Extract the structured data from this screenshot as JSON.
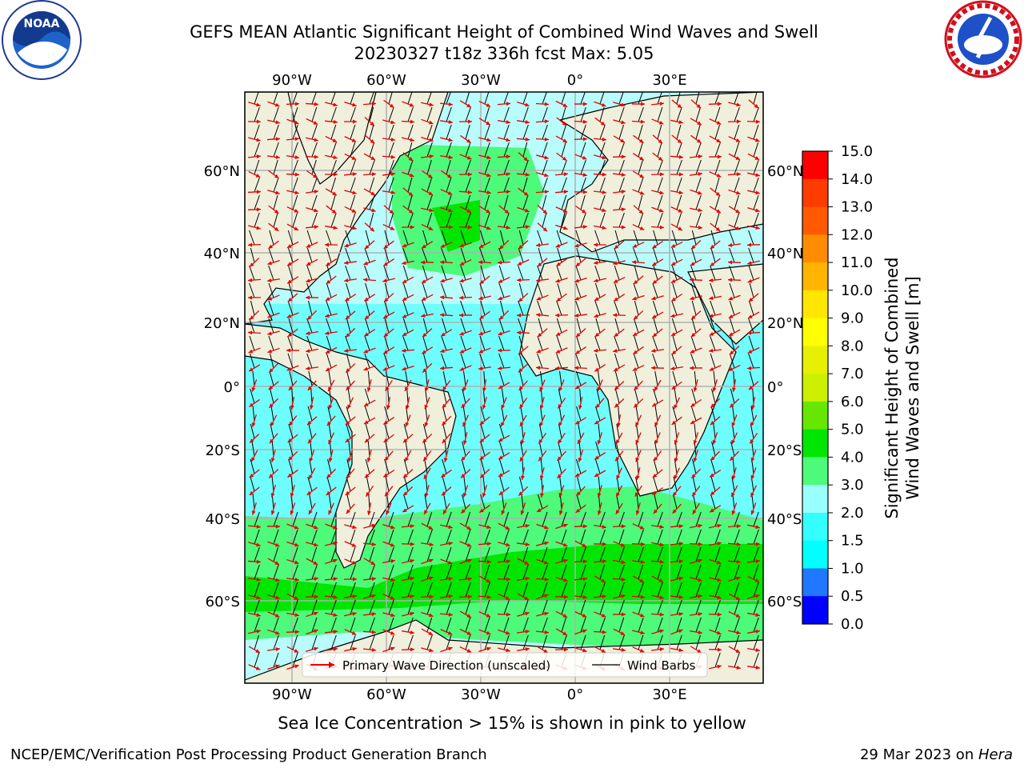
{
  "header": {
    "title_line1": "GEFS MEAN Atlantic Significant Height of Combined Wind Waves and Swell",
    "title_line2": "20230327 t18z 336h fcst   Max: 5.05"
  },
  "logos": {
    "left": "NOAA",
    "right": "National Weather Service"
  },
  "map": {
    "top_lon_labels": [
      "90°W",
      "60°W",
      "30°W",
      "0°",
      "30°E"
    ],
    "bottom_lon_labels": [
      "90°W",
      "60°W",
      "30°W",
      "0°",
      "30°E"
    ],
    "left_lat_labels": [
      "60°N",
      "40°N",
      "20°N",
      "0°",
      "20°S",
      "40°S",
      "60°S"
    ],
    "right_lat_labels": [
      "60°N",
      "40°N",
      "20°N",
      "0°",
      "20°S",
      "40°S",
      "60°S"
    ],
    "legend": {
      "wave_direction": "Primary Wave Direction (unscaled)",
      "wind_barbs": "Wind Barbs"
    },
    "colors": {
      "land": "#efefdc",
      "ocean_low": "#b8fcfc",
      "ocean_mid": "#33ffff",
      "ocean_green": "#4dfa7a",
      "ocean_deep_green": "#00e600",
      "arrow": "#e60000"
    }
  },
  "colorbar": {
    "label_line1": "Significant Height of Combined",
    "label_line2": "Wind Waves and Swell [m]",
    "ticks": [
      "0.0",
      "0.5",
      "1.0",
      "1.5",
      "2.0",
      "3.0",
      "4.0",
      "5.0",
      "6.0",
      "7.0",
      "8.0",
      "9.0",
      "10.0",
      "11.0",
      "12.0",
      "13.0",
      "14.0",
      "15.0"
    ],
    "colors": [
      "#0000ff",
      "#1f78ff",
      "#00ffff",
      "#33ffff",
      "#99ffff",
      "#4dfa7a",
      "#00e600",
      "#66e600",
      "#ccf000",
      "#e6f000",
      "#ffff00",
      "#ffe600",
      "#ffb400",
      "#ff8c00",
      "#ff5a00",
      "#ff3c00",
      "#ff0000"
    ]
  },
  "ice_note": "Sea Ice Concentration > 15% is shown in pink to yellow",
  "footer": {
    "left": "NCEP/EMC/Verification Post Processing Product Generation Branch",
    "right_prefix": "29 Mar 2023 on ",
    "right_host": "Hera"
  }
}
